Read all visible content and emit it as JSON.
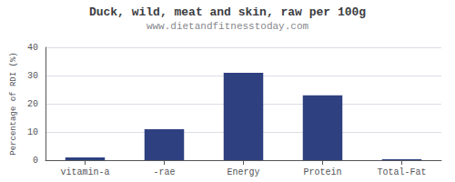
{
  "chart_data": {
    "type": "bar",
    "title": "Duck, wild, meat and skin, raw per 100g",
    "subtitle": "www.dietandfitnesstoday.com",
    "categories": [
      "vitamin-a",
      "-rae",
      "Energy",
      "Protein",
      "Total-Fat"
    ],
    "values": [
      1,
      11,
      31,
      23,
      0.3
    ],
    "color": "#2e4080",
    "ylabel": "Percentage of RDI (%)",
    "ylim": [
      0,
      40
    ],
    "yticks": [
      0,
      10,
      20,
      30,
      40
    ],
    "grid": true
  }
}
